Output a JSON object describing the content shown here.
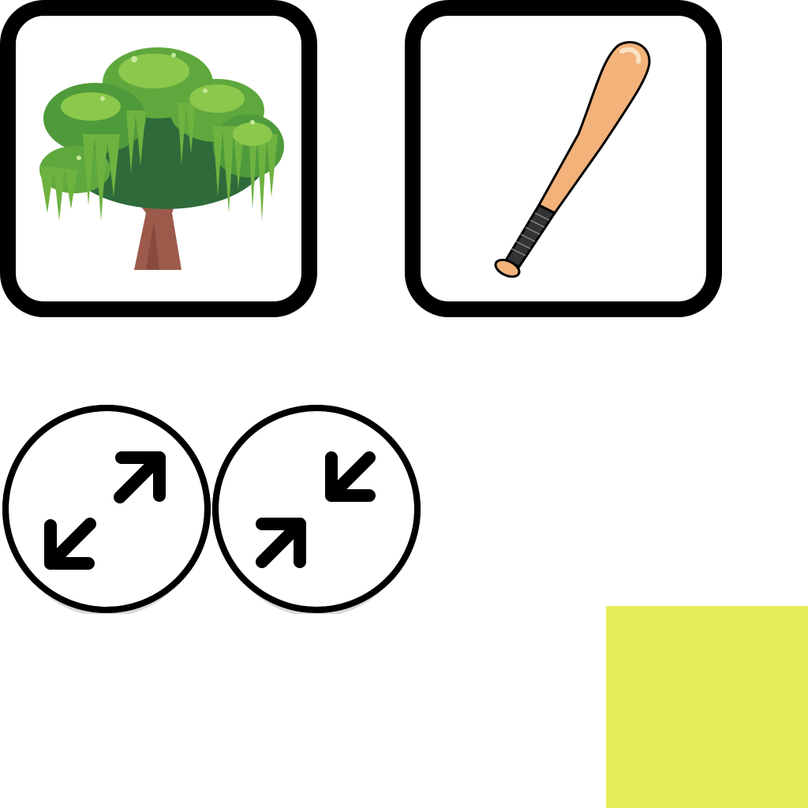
{
  "cards": [
    {
      "id": "tree",
      "icon": "willow-tree-icon"
    },
    {
      "id": "bat",
      "icon": "baseball-bat-icon"
    }
  ],
  "controls": {
    "expand_icon": "expand-arrows-icon",
    "shrink_icon": "shrink-arrows-icon"
  },
  "colors": {
    "card_border": "#000000",
    "background": "#ffffff",
    "swatch": "#e6ed5a",
    "leaf_light": "#7bc043",
    "leaf_mid": "#4f9a3a",
    "leaf_dark": "#2f6b3a",
    "trunk": "#9c5a4a",
    "bat_wood": "#f2b27a",
    "bat_grip": "#333333"
  }
}
